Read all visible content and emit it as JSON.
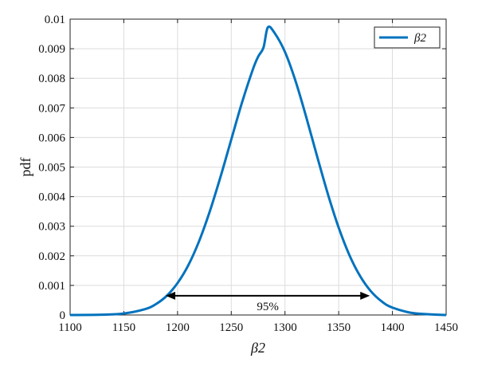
{
  "chart_data": {
    "type": "line",
    "xlabel": "β2",
    "ylabel": "pdf",
    "xlim": [
      1100,
      1450
    ],
    "ylim": [
      0,
      0.01
    ],
    "xticks": [
      "1100",
      "1150",
      "1200",
      "1250",
      "1300",
      "1350",
      "1400",
      "1450"
    ],
    "yticks": [
      "0",
      "0.001",
      "0.002",
      "0.003",
      "0.004",
      "0.005",
      "0.006",
      "0.007",
      "0.008",
      "0.009",
      "0.01"
    ],
    "grid": true,
    "legend_position": "top-right",
    "series": [
      {
        "name": "β2",
        "color": "#0072BD",
        "x": [
          1100,
          1130,
          1150,
          1170,
          1180,
          1190,
          1200,
          1210,
          1220,
          1230,
          1240,
          1250,
          1260,
          1270,
          1275,
          1280,
          1284,
          1290,
          1300,
          1310,
          1320,
          1330,
          1340,
          1350,
          1360,
          1370,
          1380,
          1390,
          1400,
          1420,
          1450
        ],
        "y": [
          0.0,
          1e-05,
          5e-05,
          0.0002,
          0.00037,
          0.00065,
          0.00108,
          0.00168,
          0.00249,
          0.0035,
          0.00467,
          0.00593,
          0.00718,
          0.00829,
          0.00873,
          0.00904,
          0.00972,
          0.00955,
          0.00889,
          0.00789,
          0.00666,
          0.00535,
          0.00408,
          0.00295,
          0.00202,
          0.00131,
          0.0008,
          0.00046,
          0.00025,
          6e-05,
          0.0
        ]
      }
    ],
    "annotation": {
      "label": "95%",
      "x_start": 1189,
      "x_end": 1379,
      "y": 0.00065,
      "color": "#000000"
    }
  }
}
